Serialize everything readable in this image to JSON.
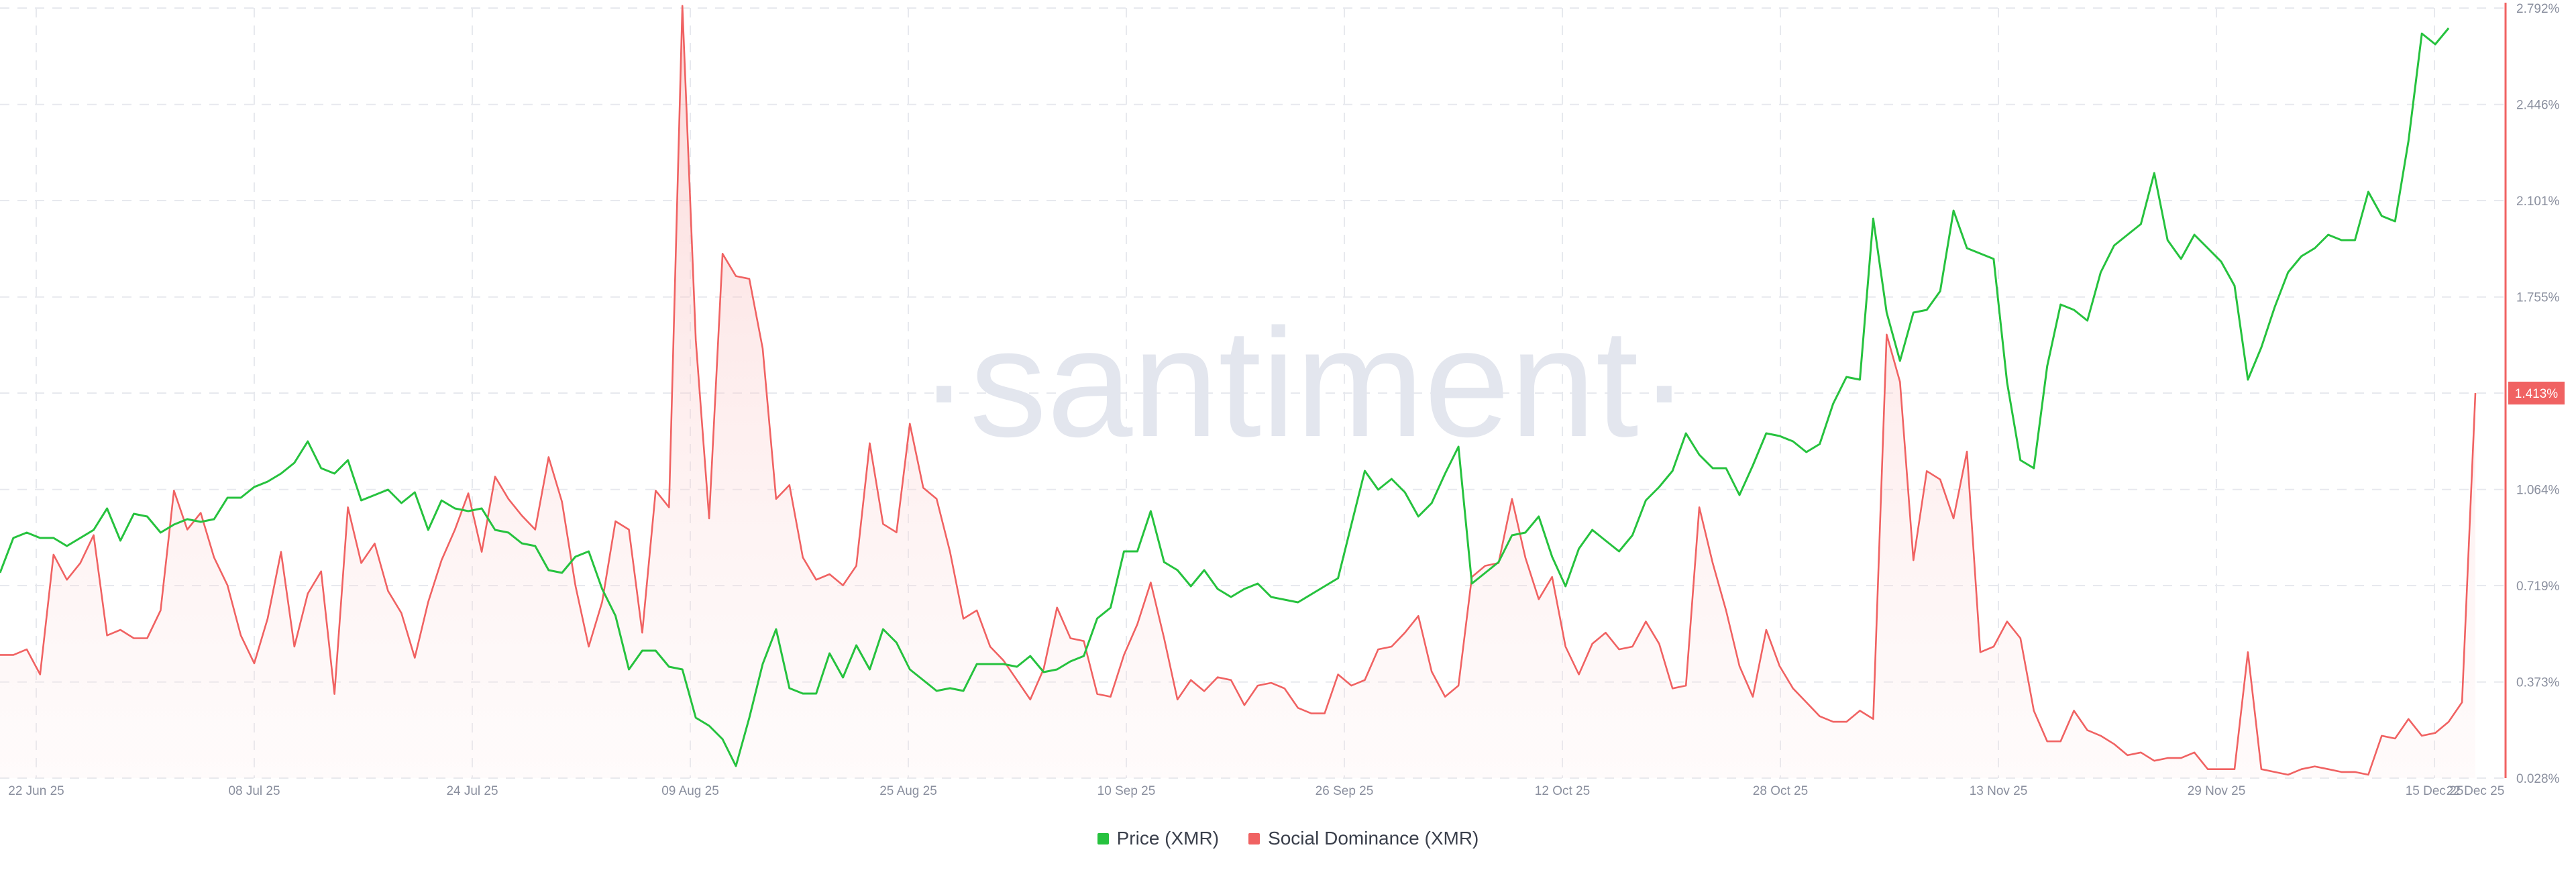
{
  "chart_data": {
    "type": "line",
    "title": "",
    "watermark": "·santiment·",
    "x_tick_labels": [
      "22 Jun 25",
      "08 Jul 25",
      "24 Jul 25",
      "09 Aug 25",
      "25 Aug 25",
      "10 Sep 25",
      "26 Sep 25",
      "12 Oct 25",
      "28 Oct 25",
      "13 Nov 25",
      "29 Nov 25",
      "15 Dec 25",
      "22 Dec 25"
    ],
    "y_right_tick_labels": [
      "2.792%",
      "2.446%",
      "2.101%",
      "1.755%",
      "1.413%",
      "1.064%",
      "0.719%",
      "0.373%",
      "0.028%"
    ],
    "y_right_ticks": [
      2.792,
      2.446,
      2.101,
      1.755,
      1.41,
      1.064,
      0.719,
      0.373,
      0.028
    ],
    "ylim_right": [
      0.028,
      2.792
    ],
    "last_value_badge": "1.413%",
    "colors": {
      "price": "#26c23e",
      "social": "#f06262",
      "axis": "#f06262",
      "badge": "#f06262",
      "grid": "#e7e9ee"
    },
    "series": [
      {
        "name": "Price (XMR)",
        "axis": "hidden",
        "values": [
          0.74,
          0.87,
          0.89,
          0.87,
          0.87,
          0.84,
          0.87,
          0.9,
          0.98,
          0.86,
          0.96,
          0.95,
          0.89,
          0.92,
          0.94,
          0.93,
          0.94,
          1.02,
          1.02,
          1.06,
          1.08,
          1.11,
          1.15,
          1.23,
          1.13,
          1.11,
          1.16,
          1.01,
          1.03,
          1.05,
          1.0,
          1.04,
          0.9,
          1.01,
          0.98,
          0.97,
          0.98,
          0.9,
          0.89,
          0.85,
          0.84,
          0.75,
          0.74,
          0.8,
          0.82,
          0.68,
          0.58,
          0.38,
          0.45,
          0.45,
          0.39,
          0.38,
          0.2,
          0.17,
          0.12,
          0.02,
          0.2,
          0.4,
          0.53,
          0.31,
          0.29,
          0.29,
          0.44,
          0.35,
          0.47,
          0.38,
          0.53,
          0.48,
          0.38,
          0.34,
          0.3,
          0.31,
          0.3,
          0.4,
          0.4,
          0.4,
          0.39,
          0.43,
          0.37,
          0.38,
          0.41,
          0.43,
          0.57,
          0.61,
          0.82,
          0.82,
          0.97,
          0.78,
          0.75,
          0.69,
          0.75,
          0.68,
          0.65,
          0.68,
          0.7,
          0.65,
          0.64,
          0.63,
          0.66,
          0.69,
          0.72,
          0.92,
          1.12,
          1.05,
          1.09,
          1.04,
          0.95,
          1.0,
          1.11,
          1.21,
          0.7,
          0.74,
          0.78,
          0.88,
          0.89,
          0.95,
          0.8,
          0.69,
          0.83,
          0.9,
          0.86,
          0.82,
          0.88,
          1.01,
          1.06,
          1.12,
          1.26,
          1.18,
          1.13,
          1.13,
          1.03,
          1.14,
          1.26,
          1.25,
          1.23,
          1.19,
          1.22,
          1.37,
          1.47,
          1.46,
          2.06,
          1.71,
          1.53,
          1.71,
          1.72,
          1.79,
          2.09,
          1.95,
          1.93,
          1.91,
          1.45,
          1.16,
          1.13,
          1.51,
          1.74,
          1.72,
          1.68,
          1.86,
          1.96,
          2.0,
          2.04,
          2.23,
          1.98,
          1.91,
          2.0,
          1.95,
          1.9,
          1.81,
          1.46,
          1.58,
          1.73,
          1.86,
          1.92,
          1.95,
          2.0,
          1.98,
          1.98,
          2.16,
          2.07,
          2.05,
          2.35,
          2.75,
          2.71,
          2.77
        ]
      },
      {
        "name": "Social Dominance (XMR)",
        "axis": "right",
        "values": [
          0.47,
          0.47,
          0.49,
          0.4,
          0.83,
          0.74,
          0.8,
          0.9,
          0.54,
          0.56,
          0.53,
          0.53,
          0.63,
          1.06,
          0.92,
          0.98,
          0.82,
          0.72,
          0.54,
          0.44,
          0.6,
          0.84,
          0.5,
          0.69,
          0.77,
          0.33,
          1.0,
          0.8,
          0.87,
          0.7,
          0.62,
          0.46,
          0.66,
          0.81,
          0.92,
          1.05,
          0.84,
          1.11,
          1.03,
          0.97,
          0.92,
          1.18,
          1.02,
          0.72,
          0.5,
          0.66,
          0.95,
          0.92,
          0.55,
          1.06,
          1.0,
          2.8,
          1.6,
          0.96,
          1.91,
          1.83,
          1.82,
          1.57,
          1.03,
          1.08,
          0.82,
          0.74,
          0.76,
          0.72,
          0.79,
          1.23,
          0.94,
          0.91,
          1.3,
          1.07,
          1.03,
          0.84,
          0.6,
          0.63,
          0.5,
          0.45,
          0.38,
          0.31,
          0.42,
          0.64,
          0.53,
          0.52,
          0.33,
          0.32,
          0.47,
          0.58,
          0.73,
          0.53,
          0.31,
          0.38,
          0.34,
          0.39,
          0.38,
          0.29,
          0.36,
          0.37,
          0.35,
          0.28,
          0.26,
          0.26,
          0.4,
          0.36,
          0.38,
          0.49,
          0.5,
          0.55,
          0.61,
          0.41,
          0.32,
          0.36,
          0.75,
          0.79,
          0.8,
          1.03,
          0.82,
          0.67,
          0.75,
          0.5,
          0.4,
          0.51,
          0.55,
          0.49,
          0.5,
          0.59,
          0.51,
          0.35,
          0.36,
          1.0,
          0.8,
          0.63,
          0.43,
          0.32,
          0.56,
          0.43,
          0.35,
          0.3,
          0.25,
          0.23,
          0.23,
          0.27,
          0.24,
          1.62,
          1.45,
          0.81,
          1.13,
          1.1,
          0.96,
          1.2,
          0.48,
          0.5,
          0.59,
          0.53,
          0.27,
          0.16,
          0.16,
          0.27,
          0.2,
          0.18,
          0.15,
          0.11,
          0.12,
          0.09,
          0.1,
          0.1,
          0.12,
          0.06,
          0.06,
          0.06,
          0.48,
          0.06,
          0.05,
          0.04,
          0.06,
          0.07,
          0.06,
          0.05,
          0.05,
          0.04,
          0.18,
          0.17,
          0.24,
          0.18,
          0.19,
          0.23,
          0.3,
          1.41
        ]
      }
    ]
  },
  "legend": {
    "price_label": "Price (XMR)",
    "social_label": "Social Dominance (XMR)"
  }
}
